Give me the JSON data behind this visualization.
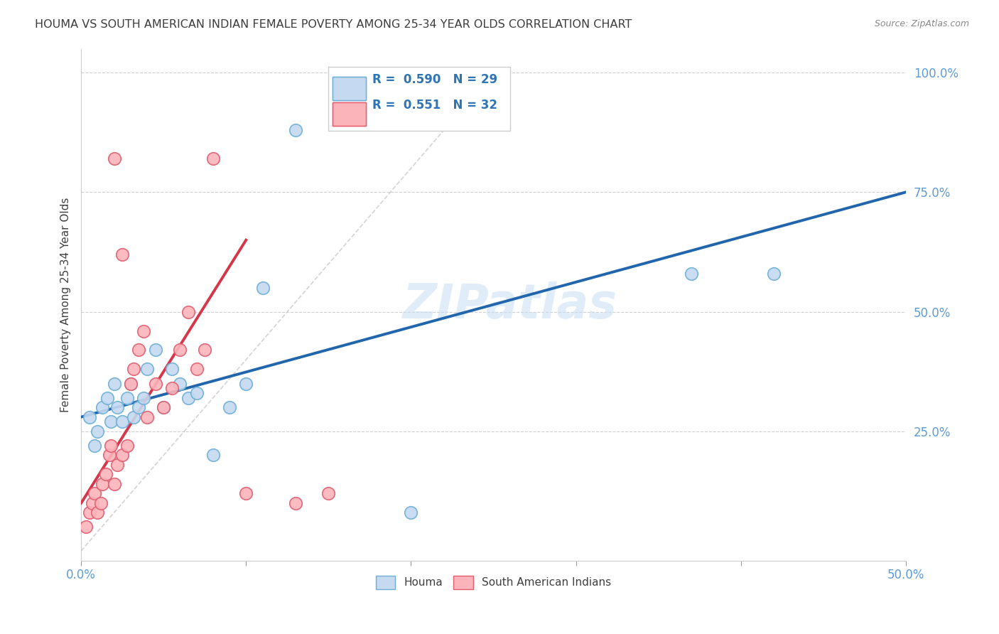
{
  "title": "HOUMA VS SOUTH AMERICAN INDIAN FEMALE POVERTY AMONG 25-34 YEAR OLDS CORRELATION CHART",
  "source": "Source: ZipAtlas.com",
  "ylabel": "Female Poverty Among 25-34 Year Olds",
  "xlim": [
    0.0,
    0.5
  ],
  "ylim": [
    -0.02,
    1.05
  ],
  "xticks": [
    0.0,
    0.1,
    0.2,
    0.3,
    0.4,
    0.5
  ],
  "xtick_labels": [
    "0.0%",
    "",
    "",
    "",
    "",
    "50.0%"
  ],
  "yticks": [
    0.25,
    0.5,
    0.75,
    1.0
  ],
  "ytick_labels": [
    "25.0%",
    "50.0%",
    "75.0%",
    "100.0%"
  ],
  "houma_color": "#c5d9f0",
  "houma_edge_color": "#6baed6",
  "sai_color": "#fbb4b9",
  "sai_edge_color": "#e05c6e",
  "houma_line_color": "#2166ac",
  "sai_line_color": "#d6364a",
  "ref_line_color": "#c8c8c8",
  "R_houma": 0.59,
  "N_houma": 29,
  "R_sai": 0.551,
  "N_sai": 32,
  "watermark": "ZIPatlas",
  "title_color": "#3c3c3c",
  "axis_label_color": "#5b9bd5",
  "legend_label_color": "#2e75b6",
  "houma_x": [
    0.005,
    0.008,
    0.01,
    0.013,
    0.016,
    0.018,
    0.02,
    0.022,
    0.025,
    0.028,
    0.03,
    0.032,
    0.035,
    0.038,
    0.04,
    0.045,
    0.05,
    0.055,
    0.06,
    0.065,
    0.07,
    0.08,
    0.09,
    0.1,
    0.11,
    0.13,
    0.37,
    0.42,
    0.2
  ],
  "houma_y": [
    0.28,
    0.22,
    0.25,
    0.3,
    0.32,
    0.27,
    0.35,
    0.3,
    0.27,
    0.32,
    0.35,
    0.28,
    0.3,
    0.32,
    0.38,
    0.42,
    0.3,
    0.38,
    0.35,
    0.32,
    0.33,
    0.2,
    0.3,
    0.35,
    0.55,
    0.88,
    0.58,
    0.58,
    0.08
  ],
  "sai_x": [
    0.003,
    0.005,
    0.007,
    0.008,
    0.01,
    0.012,
    0.013,
    0.015,
    0.017,
    0.018,
    0.02,
    0.022,
    0.025,
    0.028,
    0.03,
    0.032,
    0.035,
    0.038,
    0.04,
    0.045,
    0.05,
    0.055,
    0.06,
    0.065,
    0.07,
    0.075,
    0.08,
    0.02,
    0.025,
    0.1,
    0.13,
    0.15
  ],
  "sai_y": [
    0.05,
    0.08,
    0.1,
    0.12,
    0.08,
    0.1,
    0.14,
    0.16,
    0.2,
    0.22,
    0.14,
    0.18,
    0.2,
    0.22,
    0.35,
    0.38,
    0.42,
    0.46,
    0.28,
    0.35,
    0.3,
    0.34,
    0.42,
    0.5,
    0.38,
    0.42,
    0.82,
    0.82,
    0.62,
    0.12,
    0.1,
    0.12
  ]
}
